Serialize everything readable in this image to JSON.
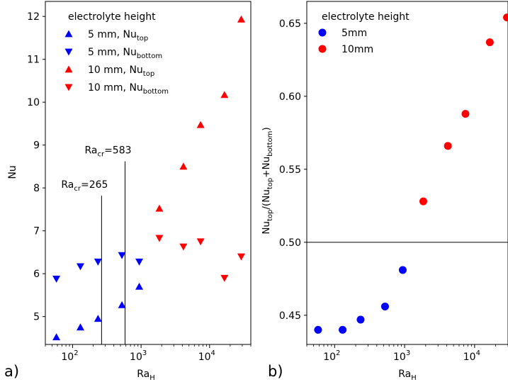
{
  "chart_data": [
    {
      "type": "scatter",
      "panel_label": "a)",
      "xlabel": "Ra",
      "xlabel_sub": "H",
      "ylabel": "Nu",
      "xscale": "log",
      "xlim": [
        40,
        40000
      ],
      "ylim": [
        4.35,
        12.35
      ],
      "y_ticks": [
        5,
        6,
        7,
        8,
        9,
        10,
        11,
        12
      ],
      "x_ticks": [
        {
          "value": 100,
          "base": "10",
          "exp": "2"
        },
        {
          "value": 1000,
          "base": "10",
          "exp": "3"
        },
        {
          "value": 10000,
          "base": "10",
          "exp": "4"
        }
      ],
      "legend": {
        "title": "electrolyte height",
        "placement": "top-left",
        "entries": [
          {
            "label": "5 mm, Nu",
            "sub": "top",
            "marker": "triangle-up",
            "color": "#0000ff"
          },
          {
            "label": "5 mm, Nu",
            "sub": "bottom",
            "marker": "triangle-down",
            "color": "#0000ff"
          },
          {
            "label": "10 mm, Nu",
            "sub": "top",
            "marker": "triangle-up",
            "color": "#ff0000"
          },
          {
            "label": "10 mm, Nu",
            "sub": "bottom",
            "marker": "triangle-down",
            "color": "#ff0000"
          }
        ]
      },
      "series": [
        {
          "marker": "triangle-up",
          "color": "#0000ff",
          "x": [
            58,
            130,
            235,
            525,
            940
          ],
          "y": [
            4.52,
            4.75,
            4.95,
            5.27,
            5.7
          ]
        },
        {
          "marker": "triangle-down",
          "color": "#0000ff",
          "x": [
            58,
            130,
            235,
            525,
            940
          ],
          "y": [
            5.88,
            6.17,
            6.28,
            6.43,
            6.28
          ]
        },
        {
          "marker": "triangle-up",
          "color": "#ff0000",
          "x": [
            1850,
            4150,
            7400,
            16500,
            29000
          ],
          "y": [
            7.52,
            8.5,
            9.47,
            10.17,
            11.93
          ]
        },
        {
          "marker": "triangle-down",
          "color": "#ff0000",
          "x": [
            1850,
            4150,
            7400,
            16500,
            29000
          ],
          "y": [
            6.83,
            6.63,
            6.75,
            5.9,
            6.4
          ]
        }
      ],
      "vlines": [
        {
          "x": 265,
          "y_top": 7.82,
          "label": "Ra",
          "sub": "cr",
          "value_text": "=265"
        },
        {
          "x": 583,
          "y_top": 8.62,
          "label": "Ra",
          "sub": "cr",
          "value_text": "=583"
        }
      ]
    },
    {
      "type": "scatter",
      "panel_label": "b)",
      "xlabel": "Ra",
      "xlabel_sub": "H",
      "ylabel_parts": [
        "Nu",
        "top",
        "/(Nu",
        "top",
        "+Nu",
        "bottom",
        ")"
      ],
      "xscale": "log",
      "xlim": [
        40,
        30000
      ],
      "ylim": [
        0.43,
        0.665
      ],
      "y_ticks": [
        {
          "value": 0.45,
          "label": "0.45"
        },
        {
          "value": 0.5,
          "label": "0.50"
        },
        {
          "value": 0.55,
          "label": "0.55"
        },
        {
          "value": 0.6,
          "label": "0.60"
        },
        {
          "value": 0.65,
          "label": "0.65"
        }
      ],
      "x_ticks": [
        {
          "value": 100,
          "base": "10",
          "exp": "2"
        },
        {
          "value": 1000,
          "base": "10",
          "exp": "3"
        },
        {
          "value": 10000,
          "base": "10",
          "exp": "4"
        }
      ],
      "hline": 0.5,
      "legend": {
        "title": "electrolyte height",
        "placement": "top-left",
        "entries": [
          {
            "label": "5mm",
            "marker": "circle",
            "color": "#0000ff"
          },
          {
            "label": "10mm",
            "marker": "circle",
            "color": "#ff0000"
          }
        ]
      },
      "series": [
        {
          "marker": "circle",
          "color": "#0000ff",
          "x": [
            58,
            130,
            235,
            525,
            940
          ],
          "y": [
            0.44,
            0.44,
            0.447,
            0.456,
            0.481
          ]
        },
        {
          "marker": "circle",
          "color": "#ff0000",
          "x": [
            1850,
            4150,
            7400,
            16500,
            29000
          ],
          "y": [
            0.528,
            0.566,
            0.588,
            0.637,
            0.654
          ]
        }
      ]
    }
  ]
}
